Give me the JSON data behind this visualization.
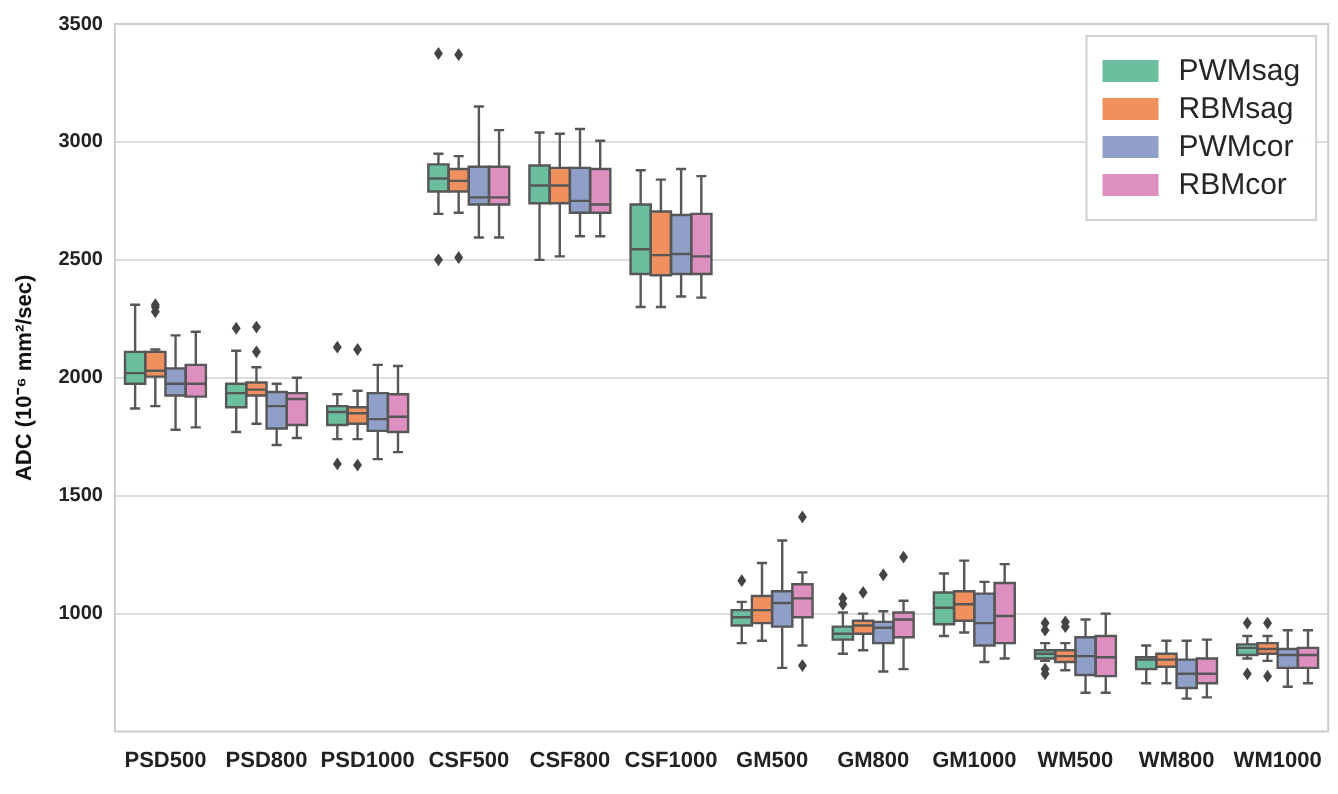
{
  "chart_data": {
    "type": "box",
    "ylabel": "ADC (10⁻⁶ mm²/sec)",
    "categories": [
      "PSD500",
      "PSD800",
      "PSD1000",
      "CSF500",
      "CSF800",
      "CSF1000",
      "GM500",
      "GM800",
      "GM1000",
      "WM500",
      "WM800",
      "WM1000"
    ],
    "ylim": [
      500,
      3500
    ],
    "yticks": [
      1000,
      1500,
      2000,
      2500,
      3000,
      3500
    ],
    "grid": "y",
    "legend": "top right",
    "marker": "diamond",
    "series": [
      {
        "name": "PWMsag",
        "color": "#6bbf9f",
        "boxes": [
          {
            "low": 1870,
            "q1": 1975,
            "median": 2020,
            "q3": 2110,
            "high": 2310
          },
          {
            "low": 1770,
            "q1": 1875,
            "median": 1935,
            "q3": 1975,
            "high": 2115,
            "outliers": [
              2210
            ]
          },
          {
            "low": 1740,
            "q1": 1800,
            "median": 1855,
            "q3": 1880,
            "high": 1930,
            "outliers": [
              2130,
              1635
            ]
          },
          {
            "low": 2695,
            "q1": 2790,
            "median": 2845,
            "q3": 2905,
            "high": 2950,
            "outliers": [
              3375,
              2500
            ]
          },
          {
            "low": 2500,
            "q1": 2740,
            "median": 2815,
            "q3": 2900,
            "high": 3040
          },
          {
            "low": 2300,
            "q1": 2440,
            "median": 2545,
            "q3": 2735,
            "high": 2880
          },
          {
            "low": 875,
            "q1": 950,
            "median": 985,
            "q3": 1015,
            "high": 1050,
            "outliers": [
              1140
            ]
          },
          {
            "low": 830,
            "q1": 890,
            "median": 915,
            "q3": 945,
            "high": 1005,
            "outliers": [
              1040,
              1065
            ]
          },
          {
            "low": 905,
            "q1": 955,
            "median": 1025,
            "q3": 1090,
            "high": 1170
          },
          {
            "low": 800,
            "q1": 810,
            "median": 830,
            "q3": 845,
            "high": 875,
            "outliers": [
              960,
              930,
              765,
              745
            ]
          },
          {
            "low": 705,
            "q1": 765,
            "median": 805,
            "q3": 815,
            "high": 865
          },
          {
            "low": 810,
            "q1": 825,
            "median": 855,
            "q3": 870,
            "high": 905,
            "outliers": [
              960,
              745
            ]
          }
        ]
      },
      {
        "name": "RBMsag",
        "color": "#f0905f",
        "boxes": [
          {
            "low": 1880,
            "q1": 2005,
            "median": 2030,
            "q3": 2110,
            "high": 2120,
            "outliers": [
              2280,
              2300,
              2310
            ]
          },
          {
            "low": 1805,
            "q1": 1925,
            "median": 1950,
            "q3": 1980,
            "high": 2045,
            "outliers": [
              2110,
              2215
            ]
          },
          {
            "low": 1740,
            "q1": 1805,
            "median": 1850,
            "q3": 1875,
            "high": 1945,
            "outliers": [
              2120,
              1630
            ]
          },
          {
            "low": 2700,
            "q1": 2790,
            "median": 2835,
            "q3": 2885,
            "high": 2940,
            "outliers": [
              3370,
              2510
            ]
          },
          {
            "low": 2515,
            "q1": 2740,
            "median": 2815,
            "q3": 2890,
            "high": 3035
          },
          {
            "low": 2300,
            "q1": 2435,
            "median": 2520,
            "q3": 2705,
            "high": 2840
          },
          {
            "low": 885,
            "q1": 960,
            "median": 1015,
            "q3": 1075,
            "high": 1215
          },
          {
            "low": 845,
            "q1": 915,
            "median": 950,
            "q3": 970,
            "high": 1000,
            "outliers": [
              1090
            ]
          },
          {
            "low": 920,
            "q1": 970,
            "median": 1040,
            "q3": 1095,
            "high": 1225
          },
          {
            "low": 760,
            "q1": 795,
            "median": 820,
            "q3": 845,
            "high": 875,
            "outliers": [
              965,
              945
            ]
          },
          {
            "low": 705,
            "q1": 775,
            "median": 805,
            "q3": 830,
            "high": 885
          },
          {
            "low": 800,
            "q1": 830,
            "median": 850,
            "q3": 875,
            "high": 905,
            "outliers": [
              960,
              735
            ]
          }
        ]
      },
      {
        "name": "PWMcor",
        "color": "#8f9fc8",
        "boxes": [
          {
            "low": 1780,
            "q1": 1925,
            "median": 1975,
            "q3": 2040,
            "high": 2180
          },
          {
            "low": 1715,
            "q1": 1785,
            "median": 1880,
            "q3": 1940,
            "high": 1975
          },
          {
            "low": 1655,
            "q1": 1775,
            "median": 1825,
            "q3": 1935,
            "high": 2055
          },
          {
            "low": 2595,
            "q1": 2735,
            "median": 2765,
            "q3": 2895,
            "high": 3150
          },
          {
            "low": 2600,
            "q1": 2700,
            "median": 2750,
            "q3": 2890,
            "high": 3055
          },
          {
            "low": 2345,
            "q1": 2440,
            "median": 2525,
            "q3": 2690,
            "high": 2885
          },
          {
            "low": 770,
            "q1": 945,
            "median": 1045,
            "q3": 1095,
            "high": 1310
          },
          {
            "low": 755,
            "q1": 875,
            "median": 940,
            "q3": 965,
            "high": 1010,
            "outliers": [
              1165
            ]
          },
          {
            "low": 795,
            "q1": 865,
            "median": 960,
            "q3": 1085,
            "high": 1135
          },
          {
            "low": 665,
            "q1": 740,
            "median": 820,
            "q3": 900,
            "high": 975
          },
          {
            "low": 640,
            "q1": 685,
            "median": 745,
            "q3": 805,
            "high": 885
          },
          {
            "low": 690,
            "q1": 770,
            "median": 825,
            "q3": 850,
            "high": 930
          }
        ]
      },
      {
        "name": "RBMcor",
        "color": "#dd8fbf",
        "boxes": [
          {
            "low": 1790,
            "q1": 1920,
            "median": 1975,
            "q3": 2055,
            "high": 2195
          },
          {
            "low": 1745,
            "q1": 1800,
            "median": 1910,
            "q3": 1935,
            "high": 2000
          },
          {
            "low": 1685,
            "q1": 1770,
            "median": 1835,
            "q3": 1930,
            "high": 2050
          },
          {
            "low": 2595,
            "q1": 2735,
            "median": 2765,
            "q3": 2895,
            "high": 3050
          },
          {
            "low": 2600,
            "q1": 2700,
            "median": 2735,
            "q3": 2885,
            "high": 3005
          },
          {
            "low": 2340,
            "q1": 2440,
            "median": 2515,
            "q3": 2695,
            "high": 2855
          },
          {
            "low": 865,
            "q1": 985,
            "median": 1065,
            "q3": 1125,
            "high": 1175,
            "outliers": [
              1410,
              780
            ]
          },
          {
            "low": 765,
            "q1": 900,
            "median": 975,
            "q3": 1005,
            "high": 1055,
            "outliers": [
              1240
            ]
          },
          {
            "low": 810,
            "q1": 875,
            "median": 990,
            "q3": 1130,
            "high": 1210
          },
          {
            "low": 665,
            "q1": 735,
            "median": 815,
            "q3": 905,
            "high": 1000
          },
          {
            "low": 645,
            "q1": 705,
            "median": 745,
            "q3": 810,
            "high": 890
          },
          {
            "low": 705,
            "q1": 770,
            "median": 825,
            "q3": 855,
            "high": 930
          }
        ]
      }
    ]
  }
}
